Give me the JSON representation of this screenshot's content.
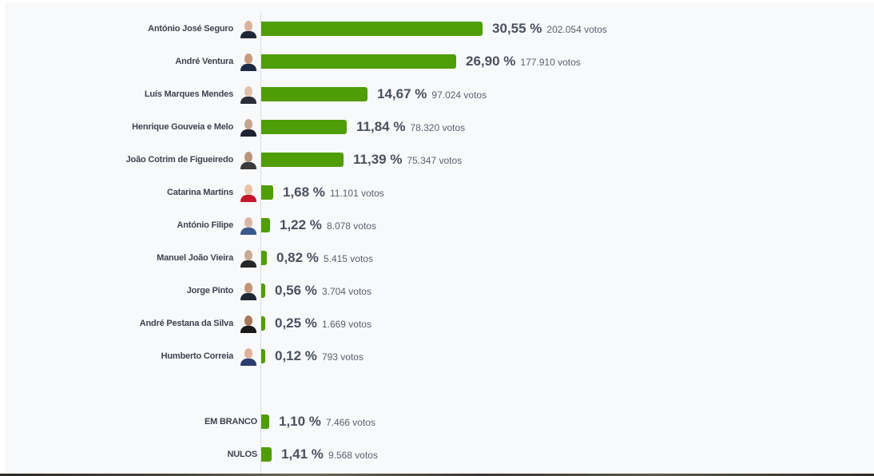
{
  "chart_data": {
    "type": "bar",
    "orientation": "horizontal",
    "title": "",
    "xlabel": "",
    "ylabel": "",
    "grid": false,
    "legend": null,
    "bar_color": "#4f9d07",
    "unit": "%",
    "categories": [
      "António José Seguro",
      "André Ventura",
      "Luís Marques Mendes",
      "Henrique Gouveia e Melo",
      "João Cotrim de Figueiredo",
      "Catarina Martins",
      "António Filipe",
      "Manuel João Vieira",
      "Jorge Pinto",
      "André Pestana da Silva",
      "Humberto Correia",
      "EM BRANCO",
      "NULOS"
    ],
    "values": [
      30.55,
      26.9,
      14.67,
      11.84,
      11.39,
      1.68,
      1.22,
      0.82,
      0.56,
      0.25,
      0.12,
      1.1,
      1.41
    ],
    "votes": [
      202054,
      177910,
      97024,
      78320,
      75347,
      11101,
      8078,
      5415,
      3704,
      1669,
      793,
      7466,
      9568
    ]
  },
  "candidates": [
    {
      "name": "António José Seguro",
      "pct": "30,55 %",
      "votes": "202.054 votos",
      "value": 30.55,
      "skin": "#d9b49c",
      "shirt": "#1f2636"
    },
    {
      "name": "André Ventura",
      "pct": "26,90 %",
      "votes": "177.910 votos",
      "value": 26.9,
      "skin": "#c99a7c",
      "shirt": "#1c2a44"
    },
    {
      "name": "Luís Marques Mendes",
      "pct": "14,67 %",
      "votes": "97.024 votos",
      "value": 14.67,
      "skin": "#e3c0a8",
      "shirt": "#2a2f3a"
    },
    {
      "name": "Henrique Gouveia e Melo",
      "pct": "11,84 %",
      "votes": "78.320 votos",
      "value": 11.84,
      "skin": "#c8a48e",
      "shirt": "#1e2330"
    },
    {
      "name": "João Cotrim de Figueiredo",
      "pct": "11,39 %",
      "votes": "75.347 votos",
      "value": 11.39,
      "skin": "#b9957d",
      "shirt": "#3a3a3a"
    },
    {
      "name": "Catarina Martins",
      "pct": "1,68 %",
      "votes": "11.101 votos",
      "value": 1.68,
      "skin": "#e8c2a4",
      "shirt": "#c4182a"
    },
    {
      "name": "António Filipe",
      "pct": "1,22 %",
      "votes": "8.078 votos",
      "value": 1.22,
      "skin": "#d8b8a4",
      "shirt": "#3a5a8c"
    },
    {
      "name": "Manuel João Vieira",
      "pct": "0,82 %",
      "votes": "5.415 votos",
      "value": 0.82,
      "skin": "#c8aa94",
      "shirt": "#262626"
    },
    {
      "name": "Jorge Pinto",
      "pct": "0,56 %",
      "votes": "3.704 votos",
      "value": 0.56,
      "skin": "#c49478",
      "shirt": "#1f2733"
    },
    {
      "name": "André Pestana da Silva",
      "pct": "0,25 %",
      "votes": "1.669 votos",
      "value": 0.25,
      "skin": "#a97a5a",
      "shirt": "#1a1a1a"
    },
    {
      "name": "Humberto Correia",
      "pct": "0,12 %",
      "votes": "793 votos",
      "value": 0.12,
      "skin": "#e0b29a",
      "shirt": "#2c3e6e"
    }
  ],
  "others": [
    {
      "name": "EM BRANCO",
      "pct": "1,10 %",
      "votes": "7.466 votos",
      "value": 1.1
    },
    {
      "name": "NULOS",
      "pct": "1,41 %",
      "votes": "9.568 votos",
      "value": 1.41
    }
  ]
}
